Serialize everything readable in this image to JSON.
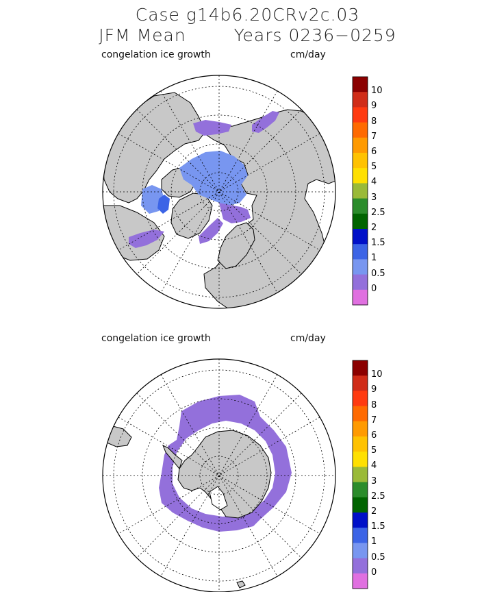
{
  "header": {
    "line1": "Case g14b6.20CRv2c.03",
    "line2_left": "JFM Mean",
    "line2_right": "Years 0236−0259"
  },
  "maps": [
    {
      "name": "north",
      "title": "congelation ice growth",
      "units": "cm/day"
    },
    {
      "name": "south",
      "title": "congelation ice growth",
      "units": "cm/day"
    }
  ],
  "colorbar": {
    "colors": [
      "#8b0000",
      "#d02c18",
      "#ff3a10",
      "#ff6a00",
      "#ff9a00",
      "#ffc200",
      "#ffe000",
      "#9aba38",
      "#2b8c2b",
      "#006400",
      "#0010c8",
      "#3c64e6",
      "#7896f0",
      "#9370db",
      "#e070e0"
    ],
    "labels": [
      "10",
      "9",
      "8",
      "7",
      "6",
      "5",
      "4",
      "3",
      "2.5",
      "2",
      "1.5",
      "1",
      "0.5",
      "0"
    ]
  },
  "colors": {
    "land": "#c8c8c8",
    "ice_low": "#9370db",
    "ice_mid": "#7896f0",
    "ice_high": "#3c64e6"
  }
}
